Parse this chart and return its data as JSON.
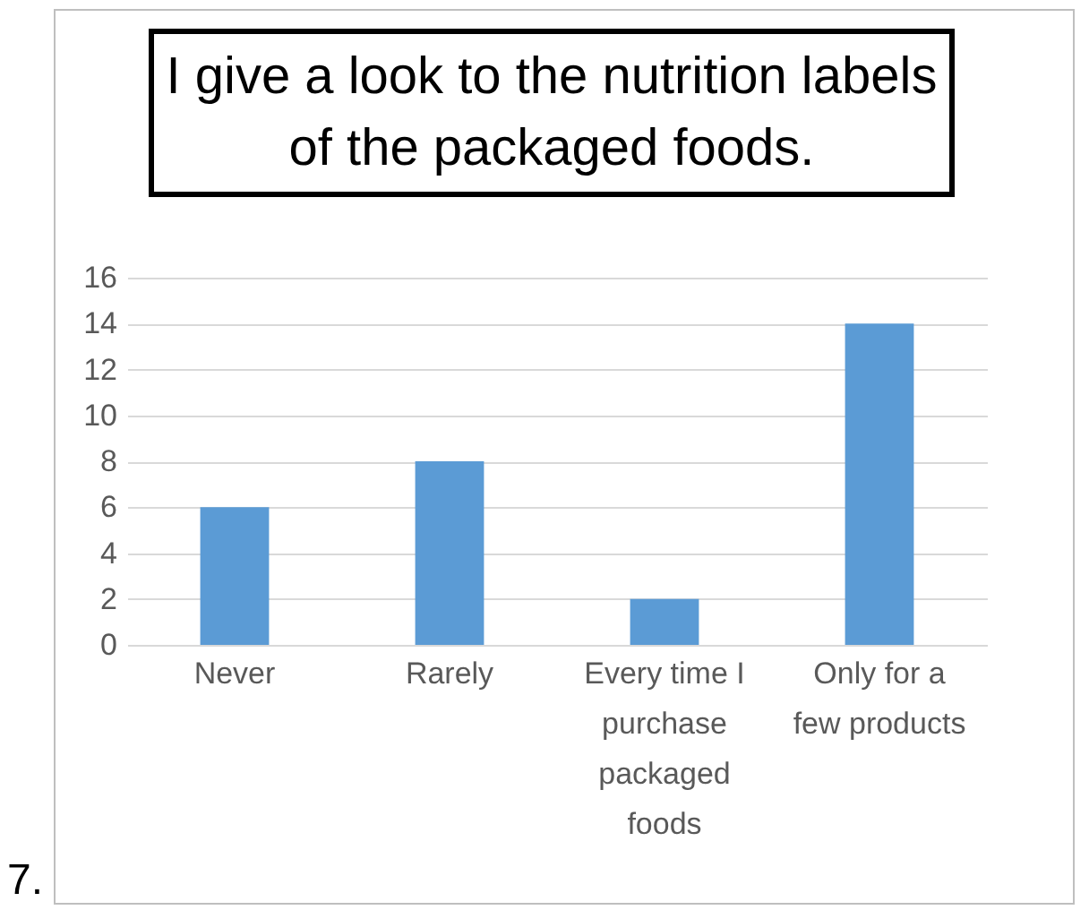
{
  "chart_data": {
    "type": "bar",
    "title": "I give a look to the nutrition labels of the packaged foods.",
    "categories": [
      "Never",
      "Rarely",
      "Every time I purchase packaged foods",
      "Only for a few products"
    ],
    "values": [
      6,
      8,
      2,
      14
    ],
    "color": "#5b9bd5",
    "ylim": [
      0,
      16
    ],
    "yticks": [
      0,
      2,
      4,
      6,
      8,
      10,
      12,
      14,
      16
    ],
    "grid": "y",
    "annotations": [
      "7."
    ]
  }
}
